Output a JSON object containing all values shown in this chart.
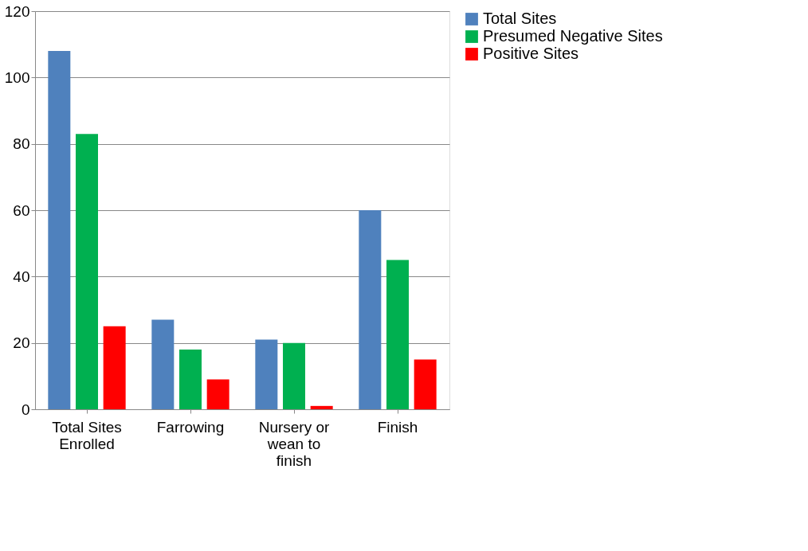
{
  "chart_data": {
    "type": "bar",
    "categories": [
      "Total Sites Enrolled",
      "Farrowing",
      "Nursery or wean to finish",
      "Finish"
    ],
    "series": [
      {
        "name": "Total Sites",
        "color": "#4f81bd",
        "values": [
          108,
          27,
          21,
          60
        ]
      },
      {
        "name": "Presumed Negative Sites",
        "color": "#00b050",
        "values": [
          83,
          18,
          20,
          45
        ]
      },
      {
        "name": "Positive Sites",
        "color": "#ff0000",
        "values": [
          25,
          9,
          1,
          15
        ]
      }
    ],
    "ylim": [
      0,
      120
    ],
    "yticks": [
      0,
      20,
      40,
      60,
      80,
      100,
      120
    ],
    "grid": "y",
    "legend": "right"
  }
}
